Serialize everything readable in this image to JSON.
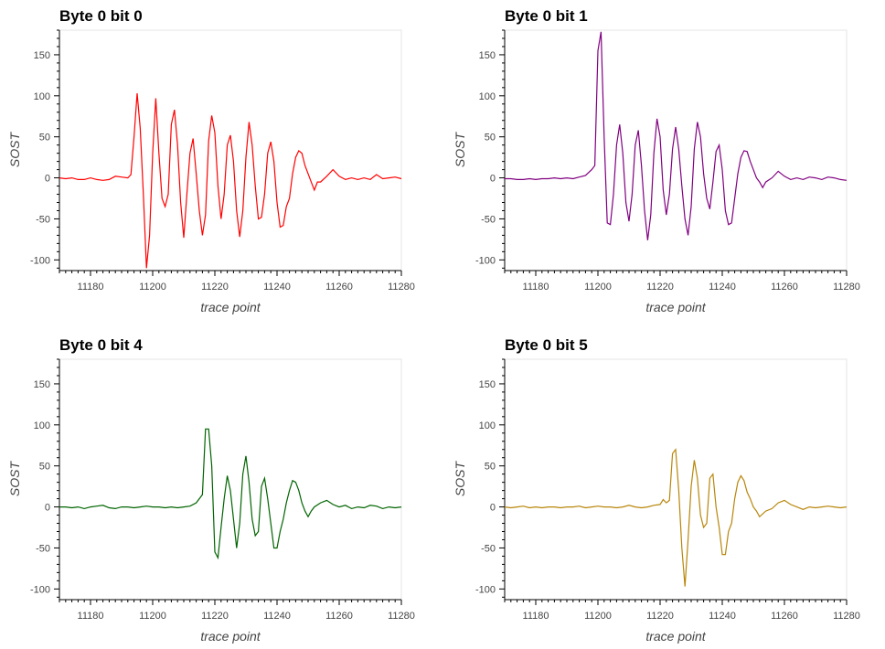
{
  "chart_data": [
    {
      "type": "line",
      "title": "Byte 0 bit 0",
      "xlabel": "trace point",
      "ylabel": "SOST",
      "xlim": [
        11170,
        11280
      ],
      "ylim": [
        -113,
        180
      ],
      "xticks": [
        11180,
        11200,
        11220,
        11240,
        11260,
        11280
      ],
      "yticks": [
        -100,
        -50,
        0,
        50,
        100,
        150
      ],
      "grid": false,
      "color": "#ff0000",
      "series": [
        {
          "x": [
            11170,
            11172,
            11174,
            11176,
            11178,
            11180,
            11182,
            11184,
            11186,
            11188,
            11190,
            11192,
            11193,
            11194,
            11195,
            11196,
            11197,
            11198,
            11199,
            11200,
            11201,
            11202,
            11203,
            11204,
            11205,
            11206,
            11207,
            11208,
            11209,
            11210,
            11211,
            11212,
            11213,
            11214,
            11215,
            11216,
            11217,
            11218,
            11219,
            11220,
            11221,
            11222,
            11223,
            11224,
            11225,
            11226,
            11227,
            11228,
            11229,
            11230,
            11231,
            11232,
            11233,
            11234,
            11235,
            11236,
            11237,
            11238,
            11239,
            11240,
            11241,
            11242,
            11243,
            11244,
            11245,
            11246,
            11247,
            11248,
            11249,
            11250,
            11251,
            11252,
            11253,
            11254,
            11256,
            11258,
            11260,
            11262,
            11264,
            11266,
            11268,
            11270,
            11272,
            11274,
            11276,
            11278,
            11280
          ],
          "y": [
            0,
            -1,
            0,
            -2,
            -2,
            0,
            -2,
            -3,
            -2,
            2,
            1,
            0,
            4,
            50,
            103,
            60,
            -20,
            -110,
            -70,
            30,
            97,
            30,
            -25,
            -35,
            -20,
            65,
            83,
            40,
            -30,
            -73,
            -20,
            30,
            48,
            5,
            -40,
            -70,
            -45,
            45,
            76,
            55,
            -10,
            -50,
            -20,
            40,
            52,
            20,
            -40,
            -72,
            -40,
            25,
            68,
            40,
            -10,
            -50,
            -48,
            -20,
            30,
            44,
            20,
            -30,
            -60,
            -58,
            -35,
            -25,
            5,
            25,
            33,
            30,
            15,
            5,
            -5,
            -15,
            -5,
            -5,
            2,
            10,
            2,
            -2,
            0,
            -2,
            0,
            -2,
            4,
            -1,
            0,
            1,
            -1
          ]
        }
      ]
    },
    {
      "type": "line",
      "title": "Byte 0 bit 1",
      "xlabel": "trace point",
      "ylabel": "SOST",
      "xlim": [
        11170,
        11280
      ],
      "ylim": [
        -113,
        180
      ],
      "xticks": [
        11180,
        11200,
        11220,
        11240,
        11260,
        11280
      ],
      "yticks": [
        -100,
        -50,
        0,
        50,
        100,
        150
      ],
      "grid": false,
      "color": "#800080",
      "series": [
        {
          "x": [
            11170,
            11172,
            11174,
            11176,
            11178,
            11180,
            11182,
            11184,
            11186,
            11188,
            11190,
            11192,
            11194,
            11196,
            11198,
            11199,
            11200,
            11201,
            11202,
            11203,
            11204,
            11205,
            11206,
            11207,
            11208,
            11209,
            11210,
            11211,
            11212,
            11213,
            11214,
            11215,
            11216,
            11217,
            11218,
            11219,
            11220,
            11221,
            11222,
            11223,
            11224,
            11225,
            11226,
            11227,
            11228,
            11229,
            11230,
            11231,
            11232,
            11233,
            11234,
            11235,
            11236,
            11237,
            11238,
            11239,
            11240,
            11241,
            11242,
            11243,
            11244,
            11245,
            11246,
            11247,
            11248,
            11249,
            11250,
            11251,
            11252,
            11253,
            11254,
            11256,
            11258,
            11260,
            11262,
            11264,
            11266,
            11268,
            11270,
            11272,
            11274,
            11276,
            11278,
            11280
          ],
          "y": [
            -1,
            -1,
            -2,
            -2,
            -1,
            -2,
            -1,
            -1,
            0,
            -1,
            0,
            -1,
            1,
            3,
            10,
            15,
            155,
            178,
            50,
            -55,
            -57,
            -20,
            40,
            65,
            30,
            -30,
            -53,
            -20,
            40,
            58,
            15,
            -40,
            -76,
            -45,
            30,
            72,
            50,
            -15,
            -45,
            -20,
            35,
            62,
            35,
            -10,
            -50,
            -70,
            -35,
            35,
            68,
            50,
            5,
            -25,
            -38,
            -5,
            32,
            40,
            10,
            -40,
            -57,
            -55,
            -25,
            5,
            25,
            33,
            32,
            20,
            10,
            0,
            -5,
            -12,
            -5,
            0,
            8,
            2,
            -2,
            0,
            -2,
            1,
            0,
            -2,
            1,
            0,
            -2,
            -3
          ]
        }
      ]
    },
    {
      "type": "line",
      "title": "Byte 0 bit 4",
      "xlabel": "trace point",
      "ylabel": "SOST",
      "xlim": [
        11170,
        11280
      ],
      "ylim": [
        -113,
        180
      ],
      "xticks": [
        11180,
        11200,
        11220,
        11240,
        11260,
        11280
      ],
      "yticks": [
        -100,
        -50,
        0,
        50,
        100,
        150
      ],
      "grid": false,
      "color": "#006400",
      "series": [
        {
          "x": [
            11170,
            11172,
            11174,
            11176,
            11178,
            11180,
            11182,
            11184,
            11186,
            11188,
            11190,
            11192,
            11194,
            11196,
            11198,
            11200,
            11202,
            11204,
            11206,
            11208,
            11210,
            11212,
            11214,
            11215,
            11216,
            11217,
            11218,
            11219,
            11220,
            11221,
            11222,
            11223,
            11224,
            11225,
            11226,
            11227,
            11228,
            11229,
            11230,
            11231,
            11232,
            11233,
            11234,
            11235,
            11236,
            11237,
            11238,
            11239,
            11240,
            11241,
            11242,
            11243,
            11244,
            11245,
            11246,
            11247,
            11248,
            11249,
            11250,
            11251,
            11252,
            11254,
            11256,
            11258,
            11260,
            11262,
            11264,
            11266,
            11268,
            11270,
            11272,
            11274,
            11276,
            11278,
            11280
          ],
          "y": [
            0,
            0,
            -1,
            0,
            -2,
            0,
            1,
            2,
            -1,
            -2,
            0,
            0,
            -1,
            0,
            1,
            0,
            0,
            -1,
            0,
            -1,
            0,
            1,
            5,
            10,
            15,
            95,
            95,
            50,
            -55,
            -62,
            -25,
            10,
            38,
            20,
            -15,
            -50,
            -20,
            40,
            62,
            30,
            -15,
            -35,
            -30,
            25,
            35,
            10,
            -20,
            -50,
            -50,
            -30,
            -15,
            5,
            20,
            32,
            30,
            20,
            5,
            -5,
            -12,
            -5,
            0,
            5,
            8,
            3,
            0,
            2,
            -2,
            0,
            -1,
            2,
            1,
            -2,
            0,
            -1,
            0
          ]
        }
      ]
    },
    {
      "type": "line",
      "title": "Byte 0 bit 5",
      "xlabel": "trace point",
      "ylabel": "SOST",
      "xlim": [
        11170,
        11280
      ],
      "ylim": [
        -113,
        180
      ],
      "xticks": [
        11180,
        11200,
        11220,
        11240,
        11260,
        11280
      ],
      "yticks": [
        -100,
        -50,
        0,
        50,
        100,
        150
      ],
      "grid": false,
      "color": "#b8860b",
      "series": [
        {
          "x": [
            11170,
            11172,
            11174,
            11176,
            11178,
            11180,
            11182,
            11184,
            11186,
            11188,
            11190,
            11192,
            11194,
            11196,
            11198,
            11200,
            11202,
            11204,
            11206,
            11208,
            11210,
            11212,
            11214,
            11216,
            11218,
            11220,
            11221,
            11222,
            11223,
            11224,
            11225,
            11226,
            11227,
            11228,
            11229,
            11230,
            11231,
            11232,
            11233,
            11234,
            11235,
            11236,
            11237,
            11238,
            11239,
            11240,
            11241,
            11242,
            11243,
            11244,
            11245,
            11246,
            11247,
            11248,
            11249,
            11250,
            11251,
            11252,
            11254,
            11256,
            11258,
            11260,
            11262,
            11264,
            11266,
            11268,
            11270,
            11272,
            11274,
            11276,
            11278,
            11280
          ],
          "y": [
            0,
            -1,
            0,
            1,
            -1,
            0,
            -1,
            0,
            0,
            -1,
            0,
            0,
            1,
            -1,
            0,
            1,
            0,
            0,
            -1,
            0,
            2,
            0,
            -1,
            0,
            2,
            3,
            9,
            5,
            8,
            65,
            70,
            20,
            -50,
            -97,
            -40,
            25,
            57,
            35,
            -10,
            -25,
            -20,
            35,
            40,
            0,
            -25,
            -58,
            -58,
            -30,
            -20,
            10,
            30,
            38,
            32,
            18,
            10,
            0,
            -5,
            -12,
            -5,
            -2,
            5,
            8,
            3,
            0,
            -3,
            0,
            -1,
            0,
            1,
            0,
            -1,
            0
          ]
        }
      ]
    }
  ]
}
